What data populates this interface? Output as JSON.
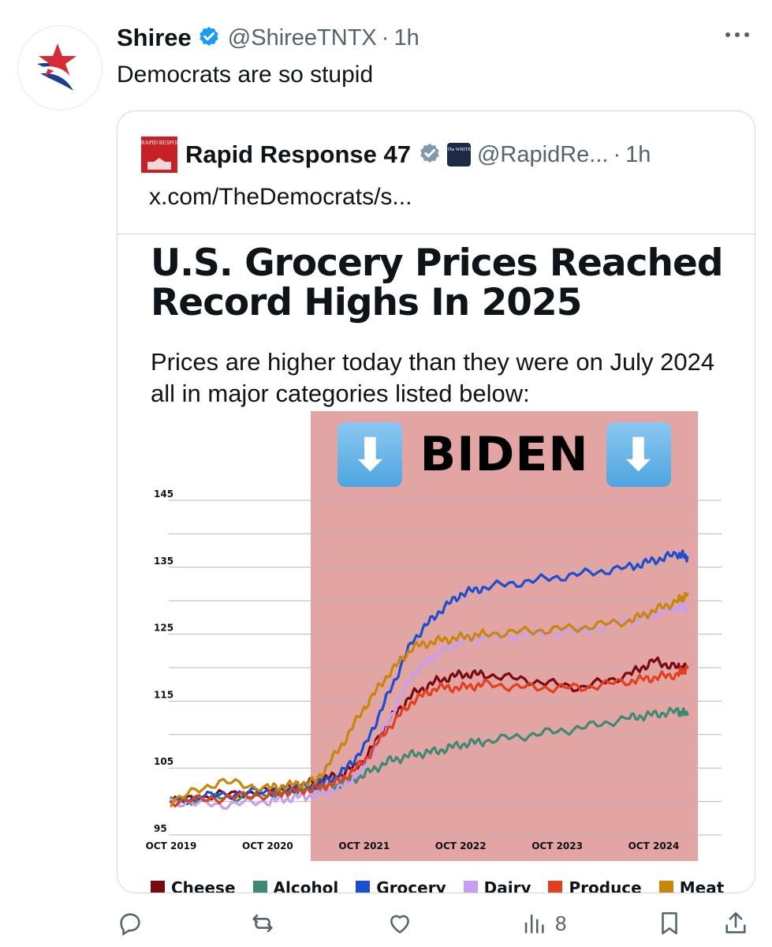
{
  "tweet": {
    "author_name": "Shiree",
    "handle": "@ShireeTNTX",
    "separator": "·",
    "time": "1h",
    "text": "Democrats are so stupid"
  },
  "quote": {
    "avatar_text": "RAPID RESPONSE",
    "author_name": "Rapid Response 47",
    "affiliation_badge_text": "The WHITE HOUSE",
    "handle": "@RapidRe...",
    "separator": "·",
    "time": "1h",
    "link": "x.com/TheDemocrats/s..."
  },
  "graphic": {
    "title": "U.S. Grocery Prices Reached Record Highs In 2025",
    "subtitle": "Prices are higher today than they were on July 2024 all in major categories listed below:",
    "band_label": "BIDEN",
    "band_arrow": "⬇"
  },
  "chart_data": {
    "type": "line",
    "title": "U.S. Grocery Prices Reached Record Highs In 2025",
    "x_ticks": [
      "OCT 2019",
      "OCT 2020",
      "OCT 2021",
      "OCT 2022",
      "OCT 2023",
      "OCT 2024"
    ],
    "y_ticks": [
      145,
      135,
      125,
      115,
      105,
      95
    ],
    "ylim": [
      95,
      145
    ],
    "x": [
      2019.75,
      2020.25,
      2020.75,
      2021.0,
      2021.25,
      2021.5,
      2021.75,
      2022.0,
      2022.25,
      2022.5,
      2022.75,
      2023.0,
      2023.5,
      2024.0,
      2024.5,
      2024.75,
      2025.0,
      2025.1
    ],
    "series": [
      {
        "name": "Cheese",
        "color": "#7a0a12",
        "values": [
          100,
          101,
          101.5,
          102,
          103,
          104,
          106,
          112,
          116,
          118,
          119,
          119,
          118,
          117,
          119,
          121,
          120,
          120
        ]
      },
      {
        "name": "Alcohol",
        "color": "#3d8a74",
        "values": [
          100,
          100.5,
          101,
          101.5,
          102,
          102.5,
          104,
          106,
          107,
          107.5,
          108.5,
          109,
          110,
          111,
          112.5,
          113,
          113.5,
          113
        ]
      },
      {
        "name": "Grocery",
        "color": "#1b4fd1",
        "values": [
          100,
          101,
          101.5,
          102,
          102.5,
          104,
          108,
          116,
          124,
          128,
          131,
          132,
          133,
          134,
          135,
          136,
          137,
          136.5
        ]
      },
      {
        "name": "Dairy",
        "color": "#c79ef0",
        "values": [
          100,
          99.5,
          100,
          100.5,
          101,
          102,
          105,
          112,
          119,
          122,
          124,
          124.5,
          125,
          125.5,
          127,
          128,
          129,
          129
        ]
      },
      {
        "name": "Produce",
        "color": "#e0401e",
        "values": [
          100,
          100.5,
          101,
          101.5,
          102,
          103,
          106,
          111,
          115,
          117,
          117,
          117.5,
          117,
          117,
          118,
          118.5,
          119,
          120
        ]
      },
      {
        "name": "Meat",
        "color": "#c8860a",
        "values": [
          100,
          103,
          102,
          102.5,
          103,
          108,
          114,
          119,
          123,
          124,
          124.5,
          125,
          125.5,
          126,
          127,
          128.5,
          130,
          131
        ]
      }
    ],
    "shaded_region": {
      "label": "BIDEN",
      "x_start": 2021.25,
      "x_end": 2025.0
    }
  },
  "actions": {
    "reply_count": "",
    "repost_count": "",
    "like_count": "",
    "views_count": "8"
  },
  "colors": {
    "verified_blue": "#1d9bf0",
    "quote_verified_gray": "#829aab",
    "secondary_text": "#536471",
    "biden_band": "#e3a4a4"
  }
}
